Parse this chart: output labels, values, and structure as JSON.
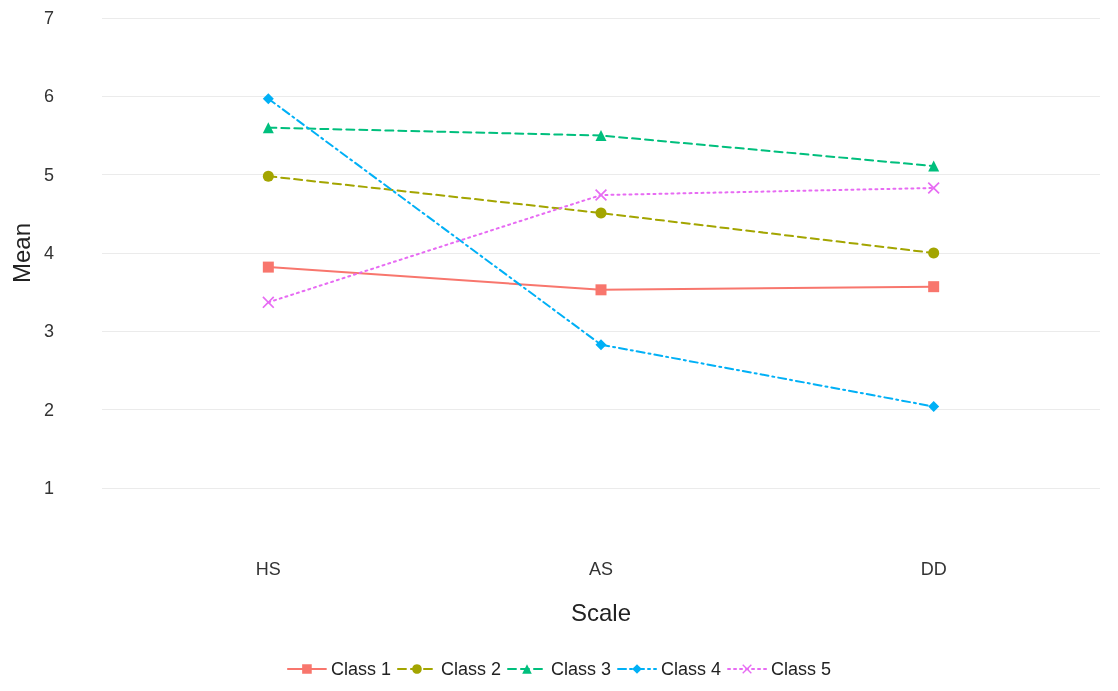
{
  "chart_data": {
    "type": "line",
    "xlabel": "Scale",
    "ylabel": "Mean",
    "categories": [
      "HS",
      "AS",
      "DD"
    ],
    "ylim": [
      1,
      7
    ],
    "yticks": [
      1,
      2,
      3,
      4,
      5,
      6,
      7
    ],
    "grid": "y",
    "legend": "bottom",
    "series": [
      {
        "name": "Class 1",
        "color": "#f8766d",
        "marker": "square",
        "line_style": "solid",
        "values": [
          3.82,
          3.53,
          3.57
        ]
      },
      {
        "name": "Class 2",
        "color": "#a3a500",
        "marker": "circle",
        "line_style": "dashed",
        "values": [
          4.98,
          4.51,
          4.0
        ]
      },
      {
        "name": "Class 3",
        "color": "#00bf7d",
        "marker": "triangle",
        "line_style": "dashed",
        "values": [
          5.6,
          5.5,
          5.11
        ]
      },
      {
        "name": "Class 4",
        "color": "#00b0f6",
        "marker": "diamond",
        "line_style": "dashdot",
        "values": [
          5.97,
          2.83,
          2.04
        ]
      },
      {
        "name": "Class 5",
        "color": "#e76bf3",
        "marker": "cross",
        "line_style": "dotted",
        "values": [
          3.37,
          4.74,
          4.83
        ]
      }
    ]
  }
}
